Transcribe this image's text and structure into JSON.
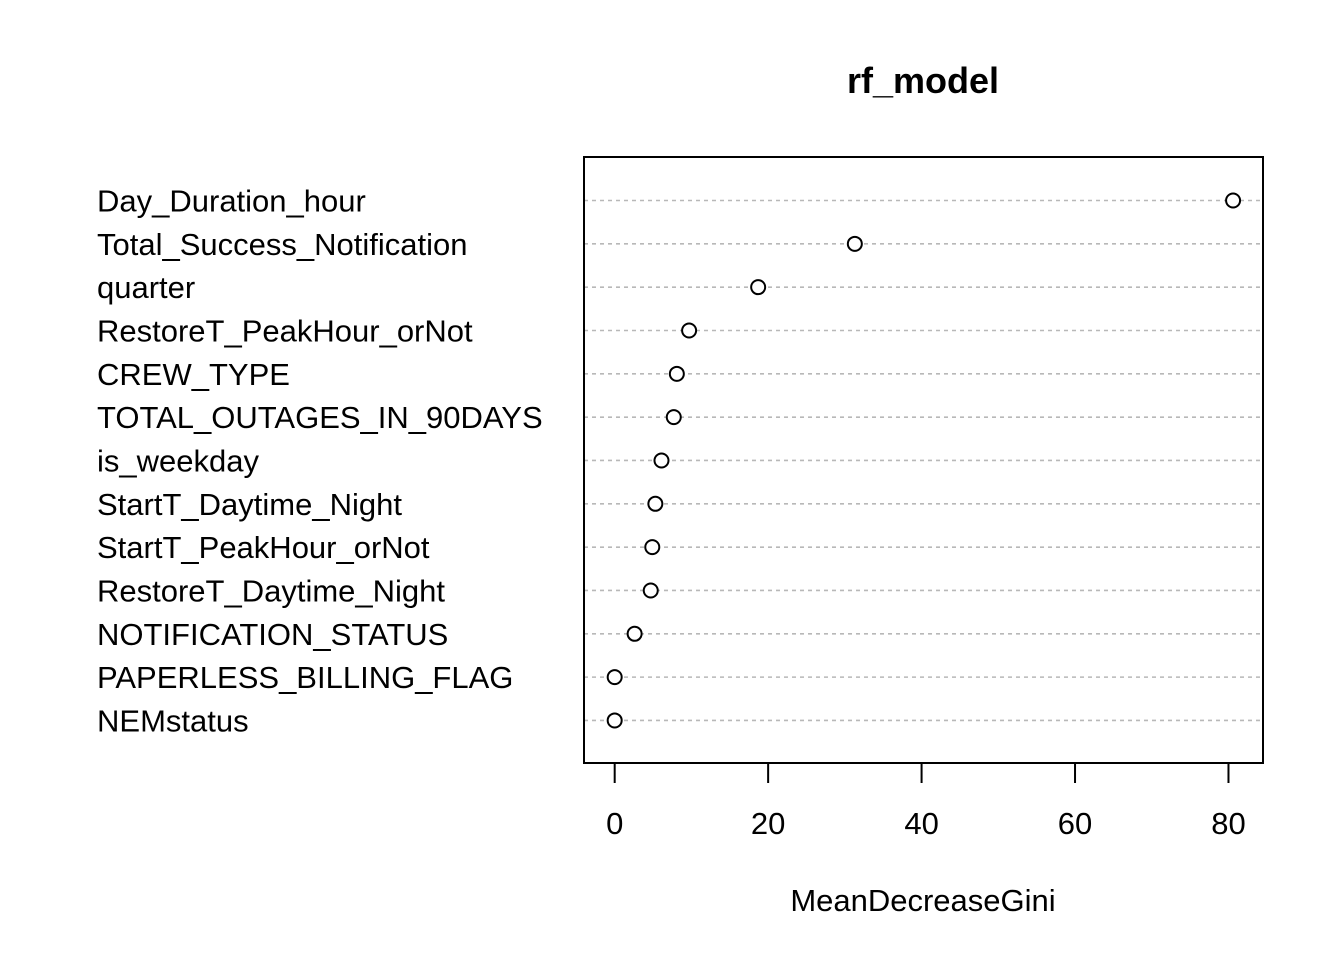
{
  "chart_data": {
    "type": "scatter",
    "title": "rf_model",
    "xlabel": "MeanDecreaseGini",
    "ylabel": "",
    "xlim": [
      -4,
      84.5
    ],
    "xticks": [
      0,
      20,
      40,
      60,
      80
    ],
    "grid": false,
    "legend": "none",
    "categories": [
      "Day_Duration_hour",
      "Total_Success_Notification",
      "quarter",
      "RestoreT_PeakHour_orNot",
      "CREW_TYPE",
      "TOTAL_OUTAGES_IN_90DAYS",
      "is_weekday",
      "StartT_Daytime_Night",
      "StartT_PeakHour_orNot",
      "RestoreT_Daytime_Night",
      "NOTIFICATION_STATUS",
      "PAPERLESS_BILLING_FLAG",
      "NEMstatus"
    ],
    "values": [
      80.6,
      31.3,
      18.7,
      9.7,
      8.1,
      7.7,
      6.1,
      5.3,
      4.9,
      4.7,
      2.6,
      0.0,
      0.0
    ]
  }
}
